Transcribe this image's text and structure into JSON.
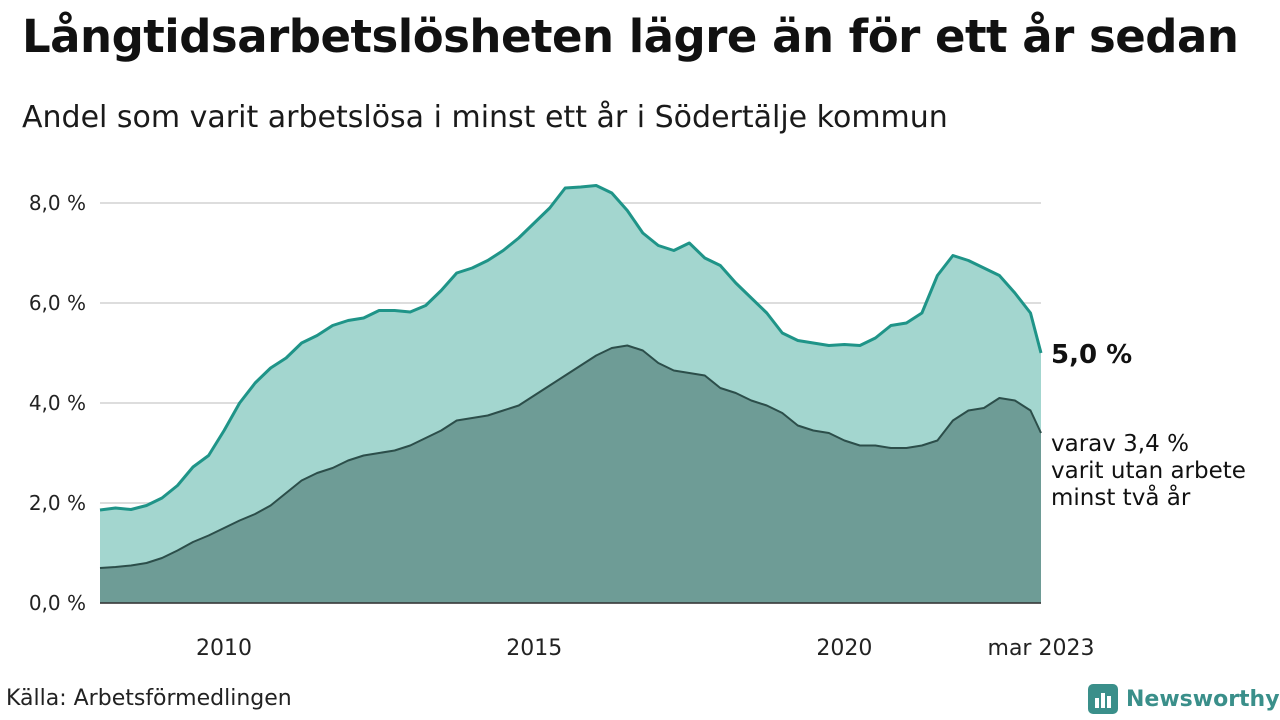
{
  "title": "Långtidsarbetslösheten lägre än för ett år sedan",
  "subtitle": "Andel som varit arbetslösa i minst ett år i Södertälje kommun",
  "source": "Källa: Arbetsförmedlingen",
  "brand": {
    "name": "Newsworthy",
    "icon": "newsworthy-logo-icon",
    "color": "#3a8f8a"
  },
  "colors": {
    "series_1_fill": "#a3d6cf",
    "series_1_line": "#1f9488",
    "series_2_fill": "#6e9c96",
    "series_2_line": "#2c4e4a",
    "grid": "#dddddd"
  },
  "chart_data": {
    "type": "area",
    "xlim": [
      2008.0,
      2023.17
    ],
    "ylim": [
      0,
      8.8
    ],
    "y_ticks": [
      {
        "value": 0,
        "label": "0,0 %"
      },
      {
        "value": 2,
        "label": "2,0 %"
      },
      {
        "value": 4,
        "label": "4,0 %"
      },
      {
        "value": 6,
        "label": "6,0 %"
      },
      {
        "value": 8,
        "label": "8,0 %"
      }
    ],
    "x_ticks": [
      {
        "value": 2010,
        "label": "2010"
      },
      {
        "value": 2015,
        "label": "2015"
      },
      {
        "value": 2020,
        "label": "2020"
      },
      {
        "value": 2023.17,
        "label": "mar 2023"
      }
    ],
    "grid": true,
    "series": [
      {
        "name": "",
        "end_label": "5,0 %",
        "x": [
          2008.0,
          2008.25,
          2008.5,
          2008.75,
          2009.0,
          2009.25,
          2009.5,
          2009.75,
          2010.0,
          2010.25,
          2010.5,
          2010.75,
          2011.0,
          2011.25,
          2011.5,
          2011.75,
          2012.0,
          2012.25,
          2012.5,
          2012.75,
          2013.0,
          2013.25,
          2013.5,
          2013.75,
          2014.0,
          2014.25,
          2014.5,
          2014.75,
          2015.0,
          2015.25,
          2015.5,
          2015.75,
          2016.0,
          2016.25,
          2016.5,
          2016.75,
          2017.0,
          2017.25,
          2017.5,
          2017.75,
          2018.0,
          2018.25,
          2018.5,
          2018.75,
          2019.0,
          2019.25,
          2019.5,
          2019.75,
          2020.0,
          2020.25,
          2020.5,
          2020.75,
          2021.0,
          2021.25,
          2021.5,
          2021.75,
          2022.0,
          2022.25,
          2022.5,
          2022.75,
          2023.0,
          2023.17
        ],
        "values": [
          1.86,
          1.9,
          1.87,
          1.95,
          2.1,
          2.35,
          2.72,
          2.95,
          3.45,
          4.0,
          4.4,
          4.7,
          4.9,
          5.2,
          5.35,
          5.55,
          5.65,
          5.7,
          5.85,
          5.85,
          5.82,
          5.95,
          6.25,
          6.6,
          6.7,
          6.85,
          7.05,
          7.3,
          7.6,
          7.9,
          8.3,
          8.32,
          8.35,
          8.2,
          7.85,
          7.4,
          7.15,
          7.05,
          7.2,
          6.9,
          6.75,
          6.4,
          6.1,
          5.8,
          5.4,
          5.25,
          5.2,
          5.15,
          5.17,
          5.15,
          5.3,
          5.55,
          5.6,
          5.8,
          6.55,
          6.95,
          6.85,
          6.7,
          6.55,
          6.2,
          5.8,
          5.0
        ]
      },
      {
        "name": "",
        "end_label": "varav 3,4 % varit utan arbete minst två år",
        "end_label_lines": [
          "varav 3,4 %",
          "varit utan arbete",
          "minst två år"
        ],
        "x": [
          2008.0,
          2008.25,
          2008.5,
          2008.75,
          2009.0,
          2009.25,
          2009.5,
          2009.75,
          2010.0,
          2010.25,
          2010.5,
          2010.75,
          2011.0,
          2011.25,
          2011.5,
          2011.75,
          2012.0,
          2012.25,
          2012.5,
          2012.75,
          2013.0,
          2013.25,
          2013.5,
          2013.75,
          2014.0,
          2014.25,
          2014.5,
          2014.75,
          2015.0,
          2015.25,
          2015.5,
          2015.75,
          2016.0,
          2016.25,
          2016.5,
          2016.75,
          2017.0,
          2017.25,
          2017.5,
          2017.75,
          2018.0,
          2018.25,
          2018.5,
          2018.75,
          2019.0,
          2019.25,
          2019.5,
          2019.75,
          2020.0,
          2020.25,
          2020.5,
          2020.75,
          2021.0,
          2021.25,
          2021.5,
          2021.75,
          2022.0,
          2022.25,
          2022.5,
          2022.75,
          2023.0,
          2023.17
        ],
        "values": [
          0.7,
          0.72,
          0.75,
          0.8,
          0.9,
          1.05,
          1.22,
          1.35,
          1.5,
          1.65,
          1.78,
          1.95,
          2.2,
          2.45,
          2.6,
          2.7,
          2.85,
          2.95,
          3.0,
          3.05,
          3.15,
          3.3,
          3.45,
          3.65,
          3.7,
          3.75,
          3.85,
          3.95,
          4.15,
          4.35,
          4.55,
          4.75,
          4.95,
          5.1,
          5.15,
          5.05,
          4.8,
          4.65,
          4.6,
          4.55,
          4.3,
          4.2,
          4.05,
          3.95,
          3.8,
          3.55,
          3.45,
          3.4,
          3.25,
          3.15,
          3.15,
          3.1,
          3.1,
          3.15,
          3.25,
          3.65,
          3.85,
          3.9,
          4.1,
          4.05,
          3.85,
          3.4
        ]
      }
    ]
  }
}
